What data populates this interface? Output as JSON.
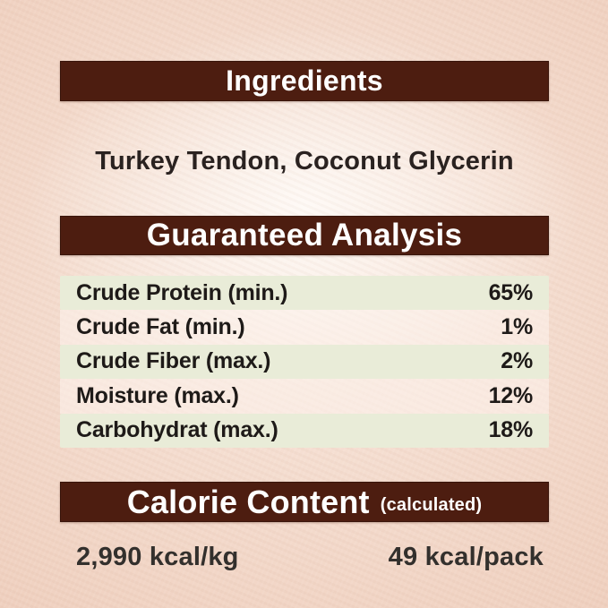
{
  "theme": {
    "accent_brown": "#4d1d10",
    "row_green": "#e9ecd8",
    "background_peach": "#f1d4c4",
    "header_text": "#ffffff",
    "body_text": "#1e1a18"
  },
  "sections": {
    "ingredients": {
      "title": "Ingredients",
      "content": "Turkey Tendon, Coconut Glycerin"
    },
    "guaranteed_analysis": {
      "title": "Guaranteed Analysis",
      "rows": [
        {
          "label": "Crude Protein (min.)",
          "value": "65%"
        },
        {
          "label": "Crude Fat (min.)",
          "value": "1%"
        },
        {
          "label": "Crude Fiber (max.)",
          "value": "2%"
        },
        {
          "label": "Moisture (max.)",
          "value": "12%"
        },
        {
          "label": "Carbohydrat (max.)",
          "value": "18%"
        }
      ]
    },
    "calorie_content": {
      "title": "Calorie Content",
      "subtitle": "(calculated)",
      "per_kg": "2,990 kcal/kg",
      "per_pack": "49 kcal/pack"
    }
  }
}
